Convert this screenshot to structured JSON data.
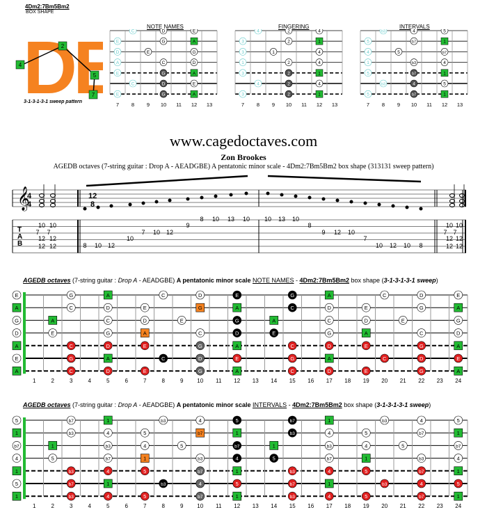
{
  "shape_box": {
    "title": "4Dm2:7Bm5Bm2",
    "subtitle": "BOX SHAPE",
    "letters": "DB",
    "pattern": "3-1-3-1-3-1 sweep pattern"
  },
  "mini": {
    "note_names_title": "NOTE NAMES",
    "fingering_title": "FINGERING",
    "intervals_title": "INTERVALS",
    "frets": [
      "7",
      "8",
      "9",
      "10",
      "11",
      "12",
      "13"
    ]
  },
  "header": {
    "site": "www.cagedoctaves.com",
    "author": "Zon Brookes",
    "subtitle": "AGEDB octaves (7-string guitar : Drop A - AEADGBE) A pentatonic minor scale - 4Dm2:7Bm5Bm2 box shape (313131 sweep pattern)"
  },
  "tab": {
    "time_sig": "12/8",
    "tab_letters": [
      "T",
      "A",
      "B"
    ]
  },
  "fretboard_notes": {
    "caption": {
      "a": "AGEDB octaves",
      "b": " (7-string guitar : ",
      "c": "Drop A",
      "d": " - AEADGBE) ",
      "e": "A pentatonic minor scale",
      "f": "NOTE NAMES",
      "g": " - ",
      "h": "4Dm2:7Bm5Bm2",
      "i": " box shape (",
      "j": "3-1-3-1-3-1 sweep",
      "k": ")"
    }
  },
  "fretboard_intervals": {
    "caption": {
      "a": "AGEDB octaves",
      "b": " (7-string guitar : ",
      "c": "Drop A",
      "d": " - AEADGBE) ",
      "e": "A pentatonic minor scale",
      "f": "INTERVALS",
      "g": " - ",
      "h": "4Dm2:7Bm5Bm2",
      "i": " box shape (",
      "j": "3-1-3-1-3-1 sweep",
      "k": ")"
    }
  },
  "fret_numbers": [
    "1",
    "2",
    "3",
    "4",
    "5",
    "6",
    "7",
    "8",
    "9",
    "10",
    "11",
    "12",
    "13",
    "14",
    "15",
    "16",
    "17",
    "18",
    "19",
    "20",
    "21",
    "22",
    "23",
    "24"
  ]
}
